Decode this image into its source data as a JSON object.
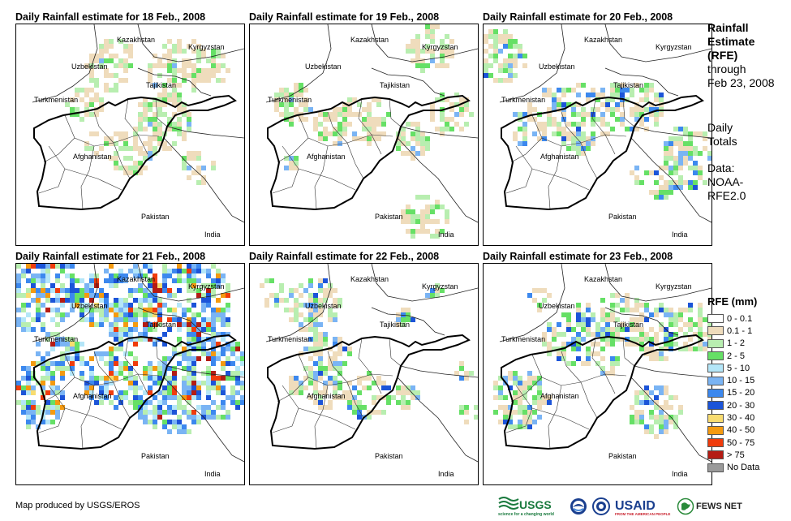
{
  "panels": [
    {
      "title": "Daily Rainfall estimate for 18 Feb., 2008",
      "intensity": 0.25
    },
    {
      "title": "Daily Rainfall estimate for 19 Feb., 2008",
      "intensity": 0.2
    },
    {
      "title": "Daily Rainfall estimate for 20 Feb., 2008",
      "intensity": 0.45
    },
    {
      "title": "Daily Rainfall estimate for 21 Feb., 2008",
      "intensity": 1.0
    },
    {
      "title": "Daily Rainfall estimate for 22 Feb., 2008",
      "intensity": 0.35
    },
    {
      "title": "Daily Rainfall estimate for 23 Feb., 2008",
      "intensity": 0.4
    }
  ],
  "map_labels": {
    "kazakhstan": "Kazakhstan",
    "kyrgyzstan": "Kyrgyzstan",
    "uzbekistan": "Uzbekistan",
    "tajikistan": "Tajikistan",
    "turkmenistan": "Turkmenistan",
    "afghanistan": "Afghanistan",
    "pakistan": "Pakistan",
    "india": "India"
  },
  "sidebar": {
    "title_line1": "Rainfall",
    "title_line2": "Estimate",
    "title_line3": "(RFE)",
    "through": "through",
    "date": "Feb 23, 2008",
    "daily": "Daily",
    "totals": "Totals",
    "data_label": "Data:",
    "source1": "NOAA-",
    "source2": "RFE2.0"
  },
  "legend": {
    "title": "RFE (mm)",
    "items": [
      {
        "label": "0 - 0.1",
        "color": "#ffffff"
      },
      {
        "label": "0.1 - 1",
        "color": "#efdcbc"
      },
      {
        "label": "1 - 2",
        "color": "#b8eeb0"
      },
      {
        "label": "2 - 5",
        "color": "#66e066"
      },
      {
        "label": "5 - 10",
        "color": "#b4e6f8"
      },
      {
        "label": "10 - 15",
        "color": "#7ab4f4"
      },
      {
        "label": "15 - 20",
        "color": "#3c88ee"
      },
      {
        "label": "20 - 30",
        "color": "#1c54d8"
      },
      {
        "label": "30 - 40",
        "color": "#f8dc70"
      },
      {
        "label": "40 - 50",
        "color": "#f49a10"
      },
      {
        "label": "50 - 75",
        "color": "#f03c0c"
      },
      {
        "label": "> 75",
        "color": "#b41c14"
      },
      {
        "label": "No Data",
        "color": "#9a9a9a"
      }
    ]
  },
  "credit": "Map produced by USGS/EROS",
  "logos": {
    "usgs": "USGS",
    "usgs_tagline": "science for a changing world",
    "usaid": "USAID",
    "usaid_tagline": "FROM THE AMERICAN PEOPLE",
    "fewsnet": "FEWS NET"
  }
}
